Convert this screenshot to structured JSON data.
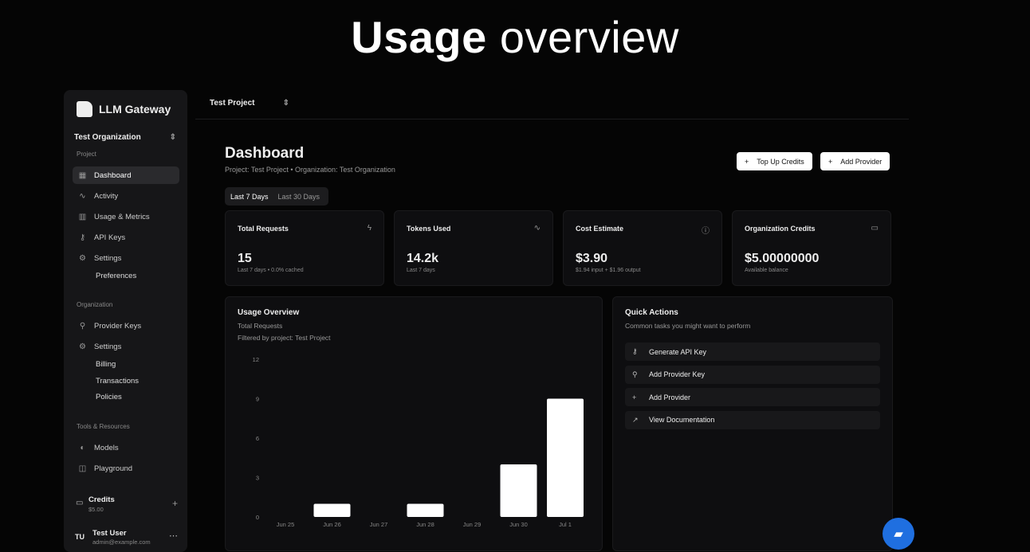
{
  "hero": {
    "bold": "Usage",
    "rest": "overview"
  },
  "sidebar": {
    "brand": "LLM Gateway",
    "org": "Test Organization",
    "sections": {
      "project": "Project",
      "organization": "Organization",
      "tools": "Tools & Resources"
    },
    "project_items": [
      {
        "label": "Dashboard",
        "icon": "grid-icon"
      },
      {
        "label": "Activity",
        "icon": "activity-icon"
      },
      {
        "label": "Usage & Metrics",
        "icon": "bar-chart-icon"
      },
      {
        "label": "API Keys",
        "icon": "key-icon"
      },
      {
        "label": "Settings",
        "icon": "gear-icon"
      }
    ],
    "project_sub": [
      "Preferences"
    ],
    "org_items": [
      {
        "label": "Provider Keys",
        "icon": "key-icon"
      },
      {
        "label": "Settings",
        "icon": "gear-icon"
      }
    ],
    "org_sub": [
      "Billing",
      "Transactions",
      "Policies"
    ],
    "tool_items": [
      {
        "label": "Models",
        "icon": "models-icon"
      },
      {
        "label": "Playground",
        "icon": "playground-icon"
      }
    ],
    "credits": {
      "label": "Credits",
      "value": "$5.00"
    },
    "user": {
      "initials": "TU",
      "name": "Test User",
      "email": "admin@example.com"
    }
  },
  "topbar": {
    "project": "Test Project"
  },
  "header": {
    "title": "Dashboard",
    "subtitle": "Project: Test Project  • Organization: Test Organization",
    "top_up": "Top Up Credits",
    "add_provider": "Add Provider"
  },
  "tabs": [
    "Last 7 Days",
    "Last 30 Days"
  ],
  "cards": [
    {
      "title": "Total Requests",
      "value": "15",
      "sub": "Last 7 days • 0.0% cached",
      "icon": "zap-icon",
      "glyph": "ϟ"
    },
    {
      "title": "Tokens Used",
      "value": "14.2k",
      "sub": "Last 7 days",
      "icon": "activity-icon",
      "glyph": "∿"
    },
    {
      "title": "Cost Estimate",
      "value": "$3.90",
      "sub": "$1.94 input + $1.96 output",
      "icon": "info-icon",
      "glyph": "ⓘ"
    },
    {
      "title": "Organization Credits",
      "value": "$5.00000000",
      "sub": "Available balance",
      "icon": "credit-card-icon",
      "glyph": "▭"
    }
  ],
  "usage": {
    "title": "Usage Overview",
    "desc": "Total Requests",
    "filter": "Filtered by project: Test Project"
  },
  "chart_data": {
    "type": "bar",
    "categories": [
      "Jun 25",
      "Jun 26",
      "Jun 27",
      "Jun 28",
      "Jun 29",
      "Jun 30",
      "Jul 1"
    ],
    "values": [
      0,
      1,
      0,
      1,
      0,
      4,
      9
    ],
    "ylim": [
      0,
      12
    ],
    "yticks": [
      "0",
      "3",
      "6",
      "9",
      "12"
    ],
    "grid": false,
    "color": "#ffffff"
  },
  "quick": {
    "title": "Quick Actions",
    "desc": "Common tasks you might want to perform",
    "items": [
      {
        "label": "Generate API Key",
        "glyph": "⚷"
      },
      {
        "label": "Add Provider Key",
        "glyph": "⚲"
      },
      {
        "label": "Add Provider",
        "glyph": "+"
      },
      {
        "label": "View Documentation",
        "glyph": "↗"
      }
    ]
  }
}
